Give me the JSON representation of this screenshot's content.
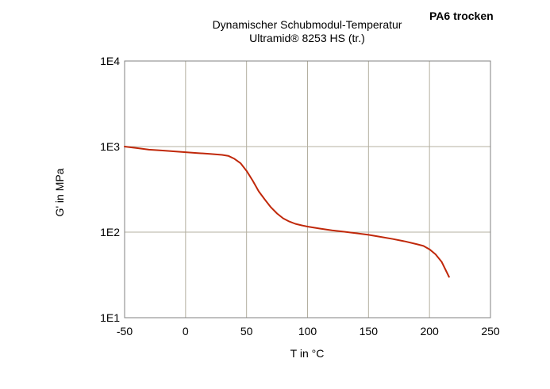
{
  "chart_data": {
    "type": "line",
    "title": "Dynamischer Schubmodul-Temperatur",
    "subtitle": "Ultramid® 8253 HS (tr.)",
    "badge": "PA6 trocken",
    "xlabel": "T in °C",
    "ylabel": "G' in MPa",
    "xlim": [
      -50,
      250
    ],
    "ylim": [
      10,
      10000
    ],
    "yscale": "log",
    "grid": true,
    "xticks": [
      -50,
      0,
      50,
      100,
      150,
      200,
      250
    ],
    "xtick_labels": [
      "-50",
      "0",
      "50",
      "100",
      "150",
      "200",
      "250"
    ],
    "yticks": [
      10,
      100,
      1000,
      10000
    ],
    "ytick_labels": [
      "1E1",
      "1E2",
      "1E3",
      "1E4"
    ],
    "line_color": "#c0280a",
    "grid_color": "#b4b0a0",
    "series": [
      {
        "x": [
          -50,
          -40,
          -30,
          -20,
          -10,
          0,
          10,
          20,
          30,
          35,
          40,
          45,
          50,
          55,
          60,
          65,
          70,
          75,
          80,
          85,
          90,
          95,
          100,
          110,
          120,
          130,
          140,
          150,
          160,
          170,
          180,
          190,
          195,
          200,
          205,
          210,
          216
        ],
        "y": [
          1000,
          960,
          920,
          900,
          880,
          860,
          840,
          820,
          800,
          780,
          720,
          640,
          520,
          400,
          300,
          240,
          195,
          165,
          145,
          133,
          125,
          120,
          116,
          110,
          105,
          101,
          97,
          93,
          88,
          83,
          78,
          72,
          69,
          63,
          55,
          45,
          30
        ]
      }
    ]
  }
}
